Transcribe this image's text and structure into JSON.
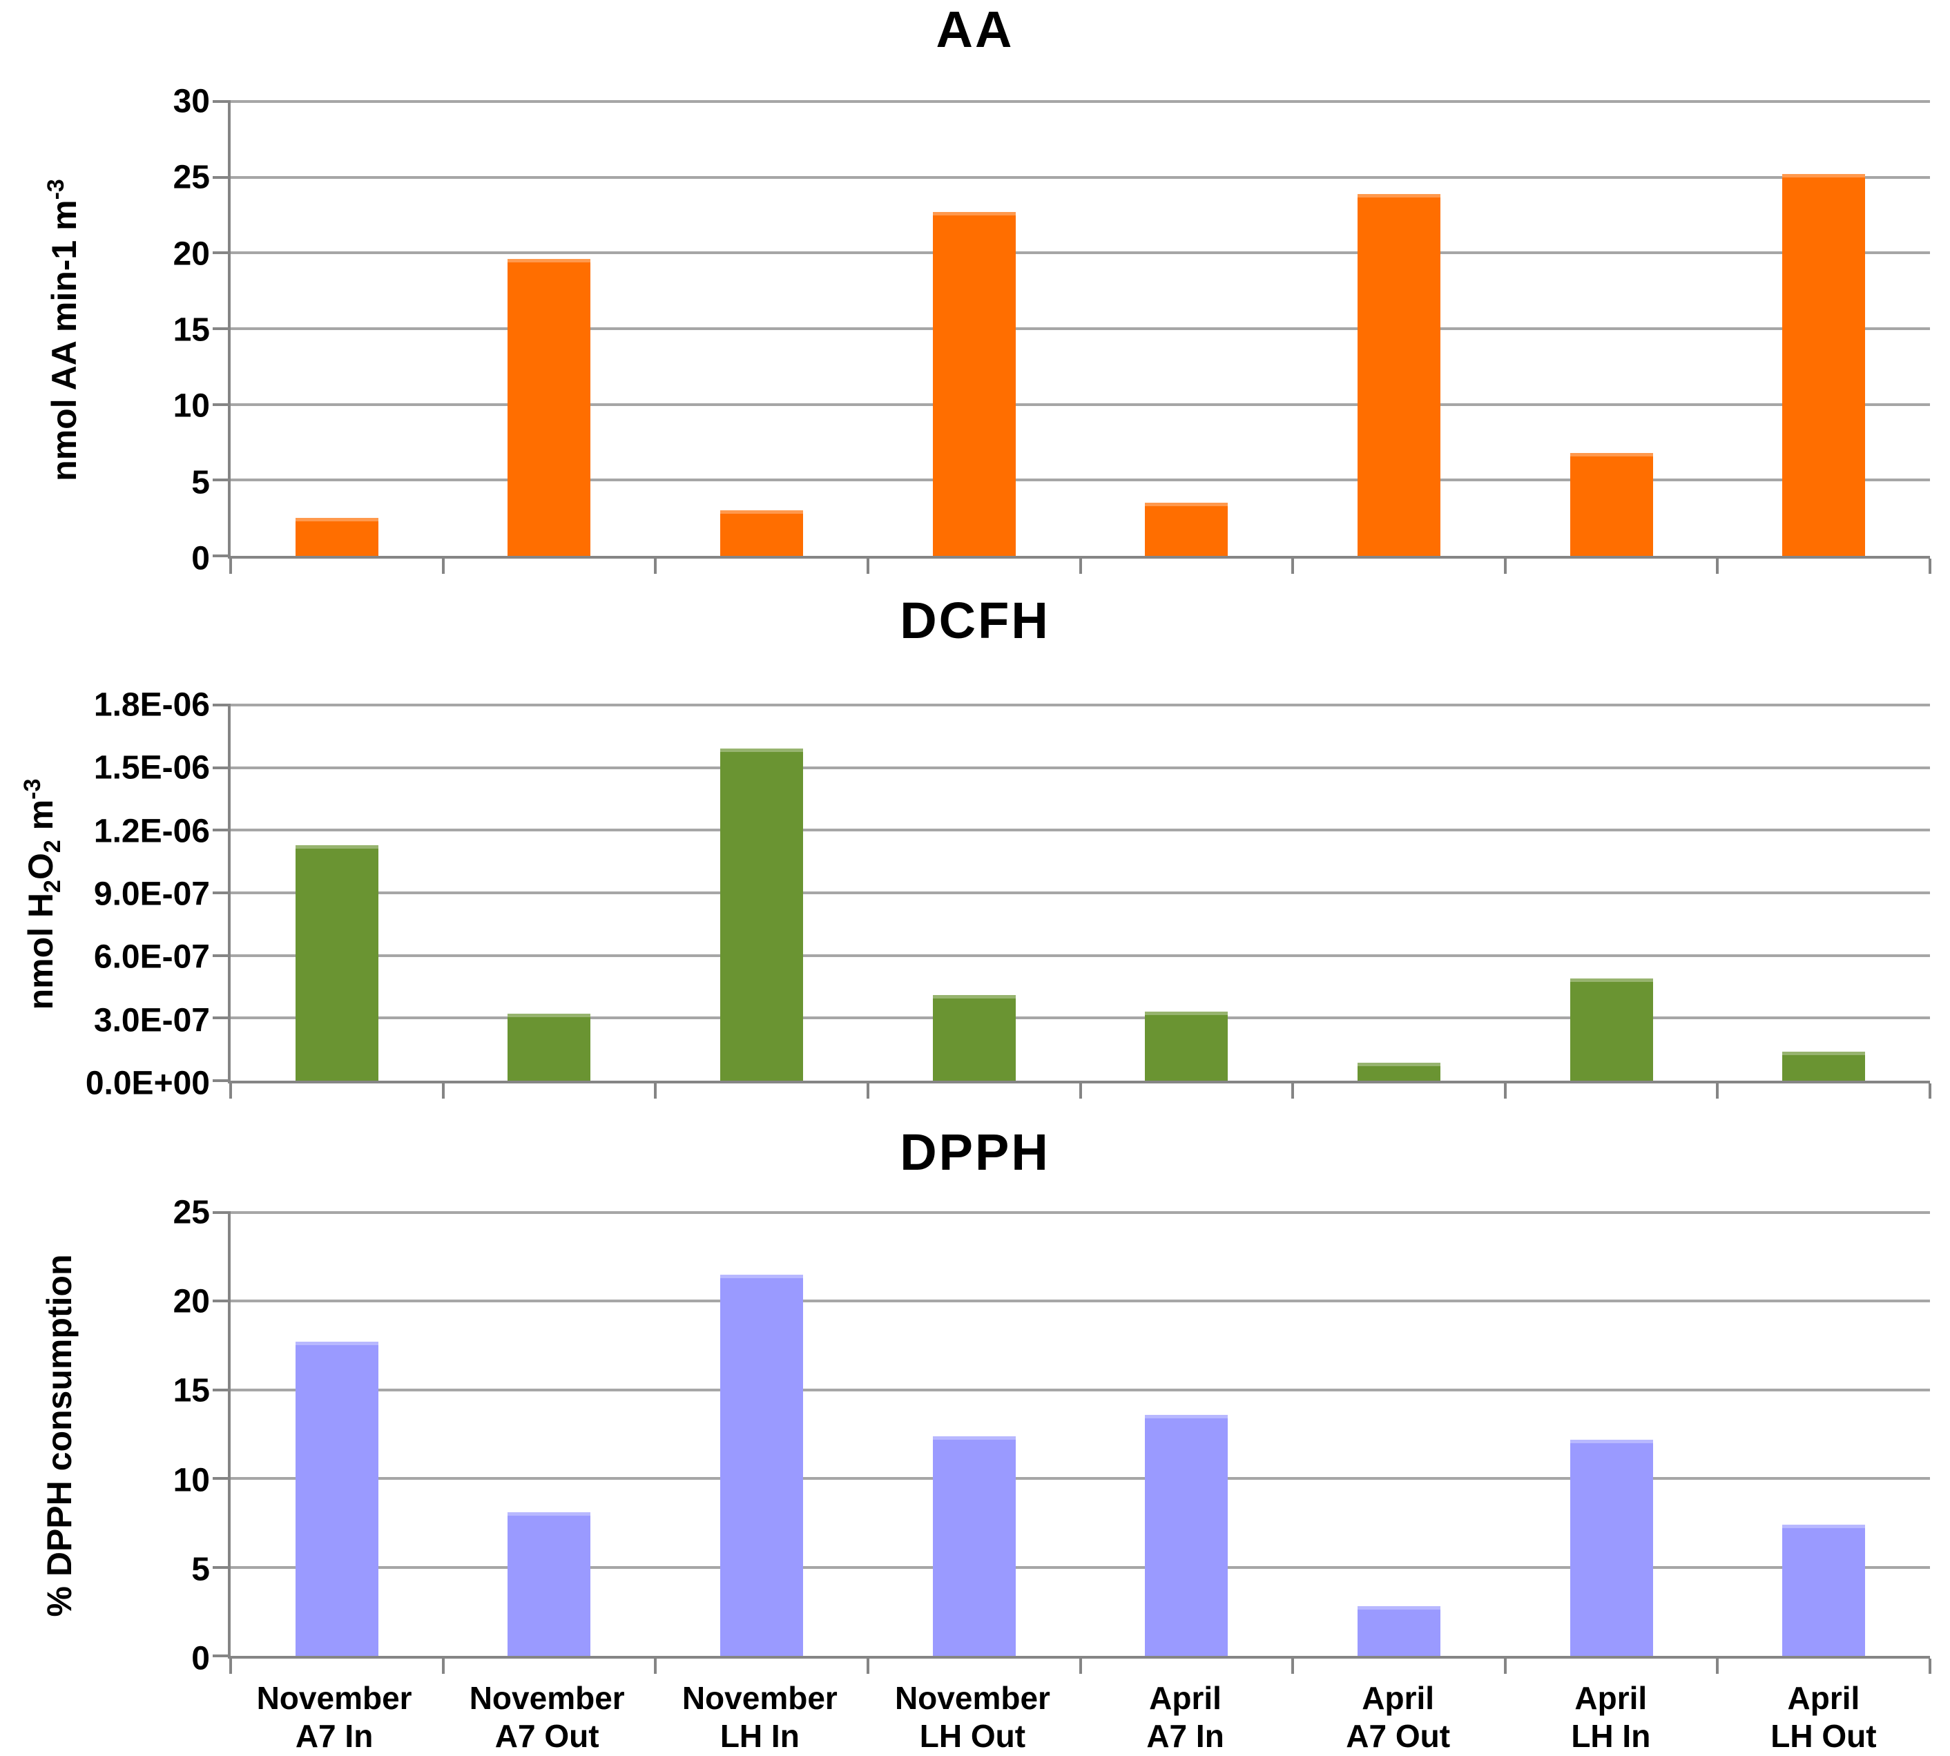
{
  "figure": {
    "background_color": "#FFFFFF",
    "gridline_color": "#A6A6A6",
    "axis_color": "#858585",
    "text_color": "#000000"
  },
  "categories": [
    {
      "line1": "November",
      "line2": "A7 In"
    },
    {
      "line1": "November",
      "line2": "A7 Out"
    },
    {
      "line1": "November",
      "line2": "LH In"
    },
    {
      "line1": "November",
      "line2": "LH Out"
    },
    {
      "line1": "April",
      "line2": "A7 In"
    },
    {
      "line1": "April",
      "line2": "A7 Out"
    },
    {
      "line1": "April",
      "line2": "LH In"
    },
    {
      "line1": "April",
      "line2": "LH Out"
    }
  ],
  "chart_data": [
    {
      "type": "bar",
      "title": "AA",
      "ylabel": "nmol AA min-1 m-3",
      "ylabel_main": "nmol AA min-1 m",
      "ylabel_sup": "-3",
      "xlabel": "",
      "categories": [
        "November A7 In",
        "November A7 Out",
        "November LH In",
        "November LH Out",
        "April A7 In",
        "April A7 Out",
        "April LH In",
        "April LH Out"
      ],
      "values": [
        2.5,
        19.6,
        3.0,
        22.7,
        3.5,
        23.9,
        6.8,
        25.2
      ],
      "ylim": [
        0,
        30
      ],
      "ytick_labels": [
        "0",
        "5",
        "10",
        "15",
        "20",
        "25",
        "30"
      ],
      "grid": true,
      "legend": false,
      "bar_color": "#FF6E00"
    },
    {
      "type": "bar",
      "title": "DCFH",
      "ylabel": "nmol H2O2 m-3",
      "ylabel_p1": "nmol H",
      "ylabel_sub1": "2",
      "ylabel_p2": "O",
      "ylabel_sub2": "2",
      "ylabel_p3": " m",
      "ylabel_sup": "-3",
      "xlabel": "",
      "categories": [
        "November A7 In",
        "November A7 Out",
        "November LH In",
        "November LH Out",
        "April A7 In",
        "April A7 Out",
        "April LH In",
        "April LH Out"
      ],
      "values": [
        1.13e-06,
        3.2e-07,
        1.59e-06,
        4.1e-07,
        3.3e-07,
        8.5e-08,
        4.9e-07,
        1.4e-07
      ],
      "ylim": [
        0,
        1.8e-06
      ],
      "ytick_labels": [
        "0.0E+00",
        "3.0E-07",
        "6.0E-07",
        "9.0E-07",
        "1.2E-06",
        "1.5E-06",
        "1.8E-06"
      ],
      "grid": true,
      "legend": false,
      "bar_color": "#6A9432"
    },
    {
      "type": "bar",
      "title": "DPPH",
      "ylabel": "% DPPH consumption",
      "ylabel_main": "% DPPH consumption",
      "xlabel": "",
      "categories": [
        "November A7 In",
        "November A7 Out",
        "November LH In",
        "November LH Out",
        "April A7 In",
        "April A7 Out",
        "April LH In",
        "April LH Out"
      ],
      "values": [
        17.7,
        8.1,
        21.5,
        12.4,
        13.6,
        2.8,
        12.2,
        7.4
      ],
      "ylim": [
        0,
        25
      ],
      "ytick_labels": [
        "0",
        "5",
        "10",
        "15",
        "20",
        "25"
      ],
      "grid": true,
      "legend": false,
      "bar_color": "#9A9AFF"
    }
  ]
}
